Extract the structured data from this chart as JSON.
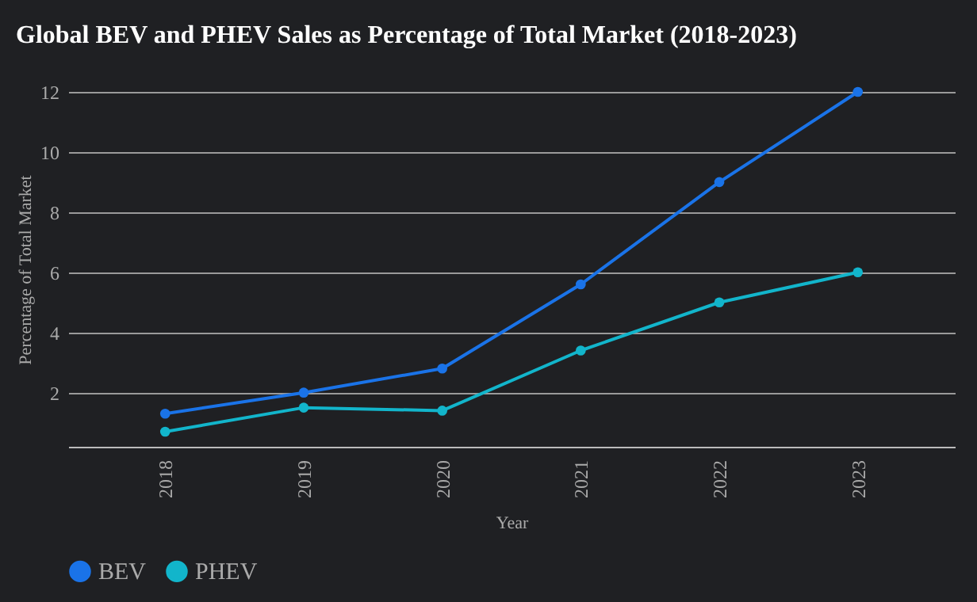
{
  "chart_data": {
    "type": "line",
    "title": "Global BEV and PHEV Sales as Percentage of Total Market (2018-2023)",
    "xlabel": "Year",
    "ylabel": "Percentage of Total Market",
    "categories": [
      "2018",
      "2019",
      "2020",
      "2021",
      "2022",
      "2023"
    ],
    "series": [
      {
        "name": "BEV",
        "color": "#1a73e8",
        "values": [
          1.3,
          2.0,
          2.8,
          5.6,
          9.0,
          12.0
        ]
      },
      {
        "name": "PHEV",
        "color": "#12b5cb",
        "values": [
          0.7,
          1.5,
          1.4,
          3.4,
          5.0,
          6.0
        ]
      }
    ],
    "ylim": [
      0.2,
      12
    ],
    "yticks": [
      2,
      4,
      6,
      8,
      10,
      12
    ],
    "grid": "y",
    "legend": "bottom left",
    "marker": "circle",
    "line_style": "solid"
  }
}
